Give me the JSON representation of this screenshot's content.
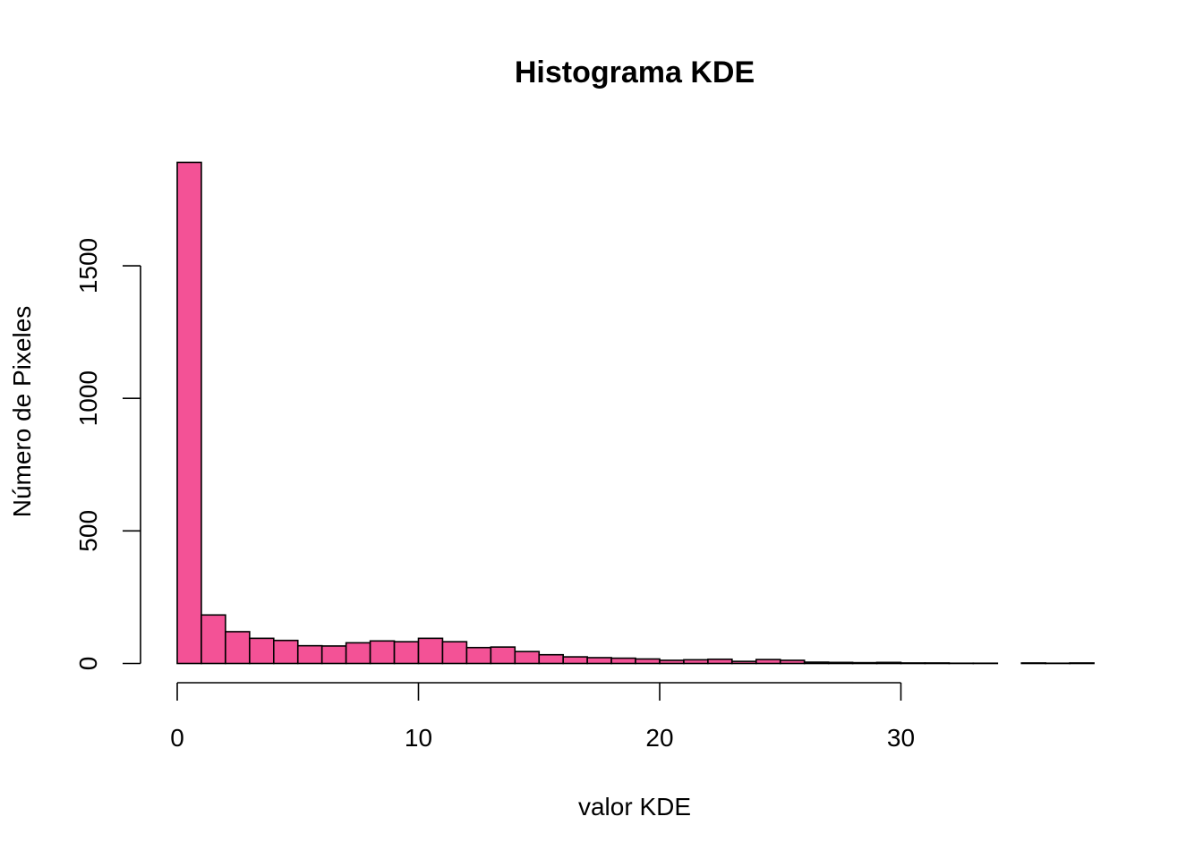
{
  "chart_data": {
    "type": "bar",
    "title": "Histograma KDE",
    "xlabel": "valor KDE",
    "ylabel": "Número de Pixeles",
    "bin_width": 1,
    "bin_starts": [
      0,
      1,
      2,
      3,
      4,
      5,
      6,
      7,
      8,
      9,
      10,
      11,
      12,
      13,
      14,
      15,
      16,
      17,
      18,
      19,
      20,
      21,
      22,
      23,
      24,
      25,
      26,
      27,
      28,
      29,
      30,
      31,
      32,
      33,
      34,
      35,
      36,
      37
    ],
    "values": [
      1890,
      183,
      120,
      95,
      87,
      67,
      66,
      78,
      85,
      82,
      95,
      82,
      60,
      62,
      45,
      33,
      25,
      22,
      20,
      17,
      12,
      14,
      16,
      8,
      15,
      12,
      5,
      4,
      3,
      4,
      2,
      2,
      1,
      1,
      0,
      2,
      1,
      2
    ],
    "xlim": [
      0,
      38
    ],
    "ylim": [
      0,
      1890
    ],
    "x_ticks": [
      0,
      10,
      20,
      30
    ],
    "y_ticks": [
      0,
      500,
      1000,
      1500
    ],
    "x_tick_labels": [
      "0",
      "10",
      "20",
      "30"
    ],
    "y_tick_labels": [
      "0",
      "500",
      "1000",
      "1500"
    ],
    "bar_color": "#F35296",
    "bar_edge_color": "#000000",
    "grid": false,
    "legend": "none"
  }
}
